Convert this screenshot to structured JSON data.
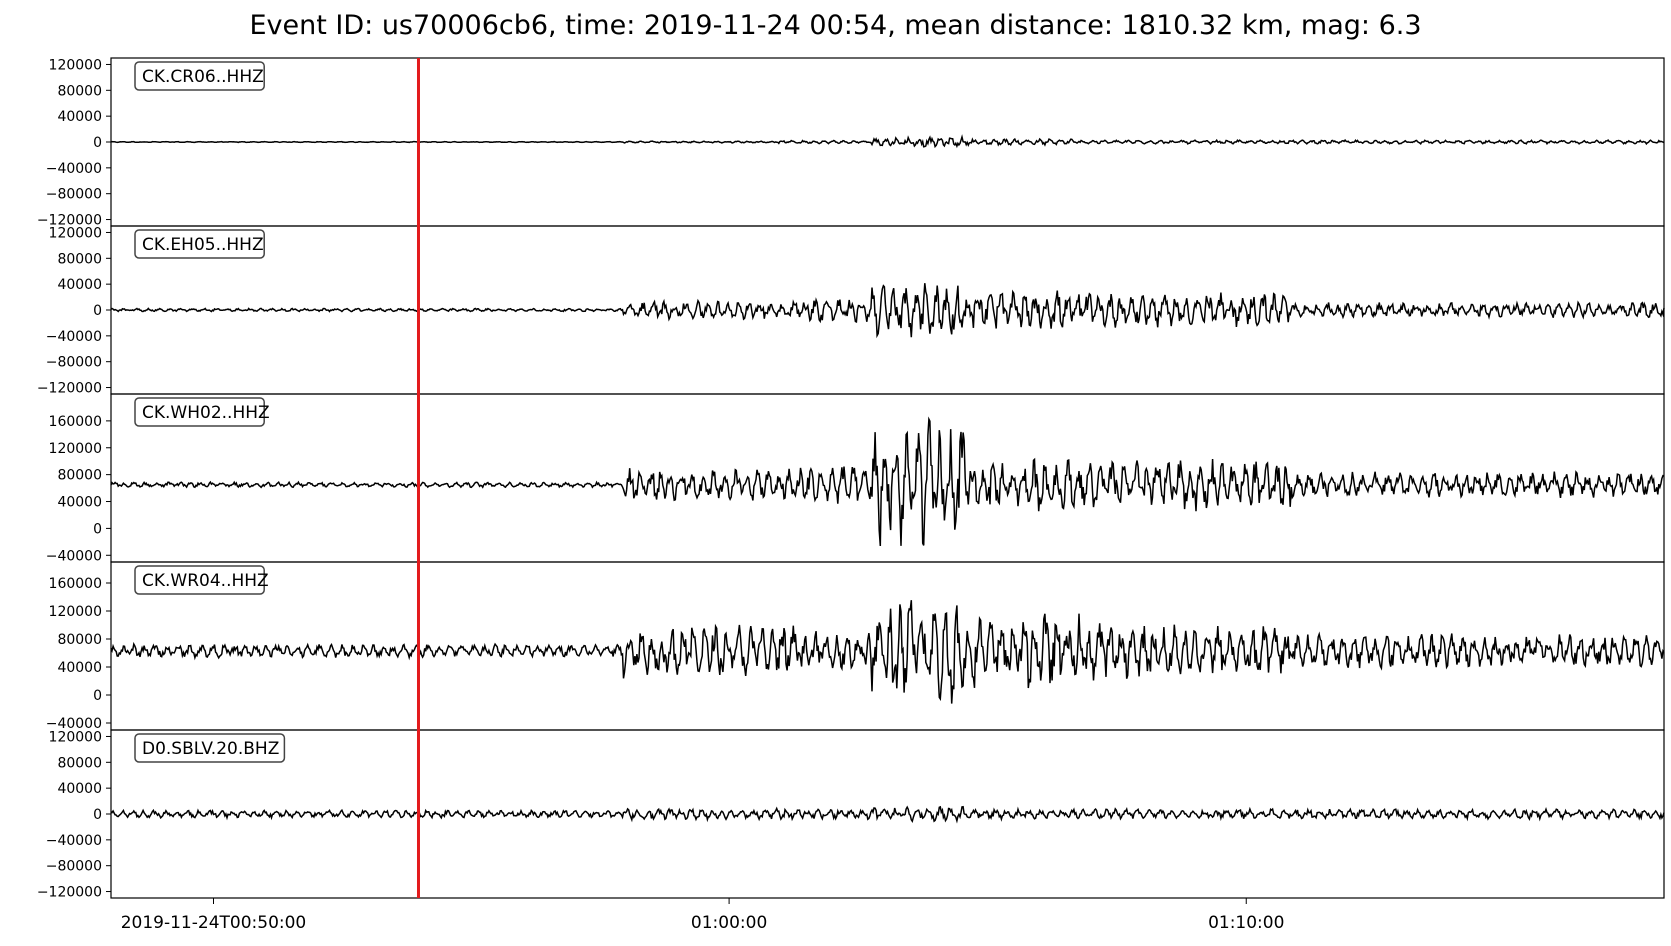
{
  "title": "Event ID: us70006cb6, time: 2019-11-24 00:54, mean distance: 1810.32 km, mag: 6.3",
  "chart_data": {
    "type": "line",
    "xlabel": "",
    "ylabel": "",
    "x_ticks": [
      "2019-11-24T00:50:00",
      "01:00:00",
      "01:10:00"
    ],
    "event_marker": {
      "time": "2019-11-24T00:54",
      "color": "#e31a1c"
    },
    "colors": {
      "trace": "#000000",
      "marker": "#e31a1c",
      "axes": "#000000"
    },
    "panels": [
      {
        "station": "CK.CR06..HHZ",
        "ylim": [
          -130000,
          130000
        ],
        "yticks": [
          120000,
          80000,
          40000,
          0,
          -40000,
          -80000,
          -120000
        ],
        "baseline": 0,
        "segments": [
          {
            "start": 0.0,
            "end": 0.33,
            "amp": 700
          },
          {
            "start": 0.33,
            "end": 0.43,
            "amp": 1500
          },
          {
            "start": 0.43,
            "end": 0.49,
            "amp": 2500
          },
          {
            "start": 0.49,
            "end": 0.55,
            "amp": 8000
          },
          {
            "start": 0.55,
            "end": 0.62,
            "amp": 5000
          },
          {
            "start": 0.62,
            "end": 1.0,
            "amp": 3000
          }
        ]
      },
      {
        "station": "CK.EH05..HHZ",
        "ylim": [
          -130000,
          130000
        ],
        "yticks": [
          120000,
          80000,
          40000,
          0,
          -40000,
          -80000,
          -120000
        ],
        "baseline": 0,
        "segments": [
          {
            "start": 0.0,
            "end": 0.33,
            "amp": 2500
          },
          {
            "start": 0.33,
            "end": 0.45,
            "amp": 15000
          },
          {
            "start": 0.45,
            "end": 0.49,
            "amp": 20000
          },
          {
            "start": 0.49,
            "end": 0.55,
            "amp": 45000
          },
          {
            "start": 0.55,
            "end": 0.64,
            "amp": 32000
          },
          {
            "start": 0.64,
            "end": 0.76,
            "amp": 28000
          },
          {
            "start": 0.76,
            "end": 1.0,
            "amp": 12000
          }
        ]
      },
      {
        "station": "CK.WH02..HHZ",
        "ylim": [
          -50000,
          200000
        ],
        "yticks": [
          160000,
          120000,
          80000,
          40000,
          0,
          -40000
        ],
        "baseline": 65000,
        "segments": [
          {
            "start": 0.0,
            "end": 0.33,
            "amp": 4000
          },
          {
            "start": 0.33,
            "end": 0.44,
            "amp": 25000
          },
          {
            "start": 0.44,
            "end": 0.49,
            "amp": 30000
          },
          {
            "start": 0.49,
            "end": 0.55,
            "amp": 100000
          },
          {
            "start": 0.55,
            "end": 0.64,
            "amp": 40000
          },
          {
            "start": 0.64,
            "end": 0.76,
            "amp": 40000
          },
          {
            "start": 0.76,
            "end": 1.0,
            "amp": 20000
          }
        ]
      },
      {
        "station": "CK.WR04..HHZ",
        "ylim": [
          -50000,
          190000
        ],
        "yticks": [
          160000,
          120000,
          80000,
          40000,
          0,
          -40000
        ],
        "baseline": 63000,
        "segments": [
          {
            "start": 0.0,
            "end": 0.33,
            "amp": 10000
          },
          {
            "start": 0.33,
            "end": 0.44,
            "amp": 40000
          },
          {
            "start": 0.44,
            "end": 0.49,
            "amp": 30000
          },
          {
            "start": 0.49,
            "end": 0.55,
            "amp": 80000
          },
          {
            "start": 0.55,
            "end": 0.64,
            "amp": 55000
          },
          {
            "start": 0.64,
            "end": 0.76,
            "amp": 40000
          },
          {
            "start": 0.76,
            "end": 1.0,
            "amp": 25000
          }
        ]
      },
      {
        "station": "D0.SBLV.20.BHZ",
        "ylim": [
          -130000,
          130000
        ],
        "yticks": [
          120000,
          80000,
          40000,
          0,
          -40000,
          -80000,
          -120000
        ],
        "baseline": 0,
        "segments": [
          {
            "start": 0.0,
            "end": 0.33,
            "amp": 6000
          },
          {
            "start": 0.33,
            "end": 0.49,
            "amp": 9000
          },
          {
            "start": 0.49,
            "end": 0.55,
            "amp": 12000
          },
          {
            "start": 0.55,
            "end": 1.0,
            "amp": 8000
          }
        ]
      }
    ]
  }
}
